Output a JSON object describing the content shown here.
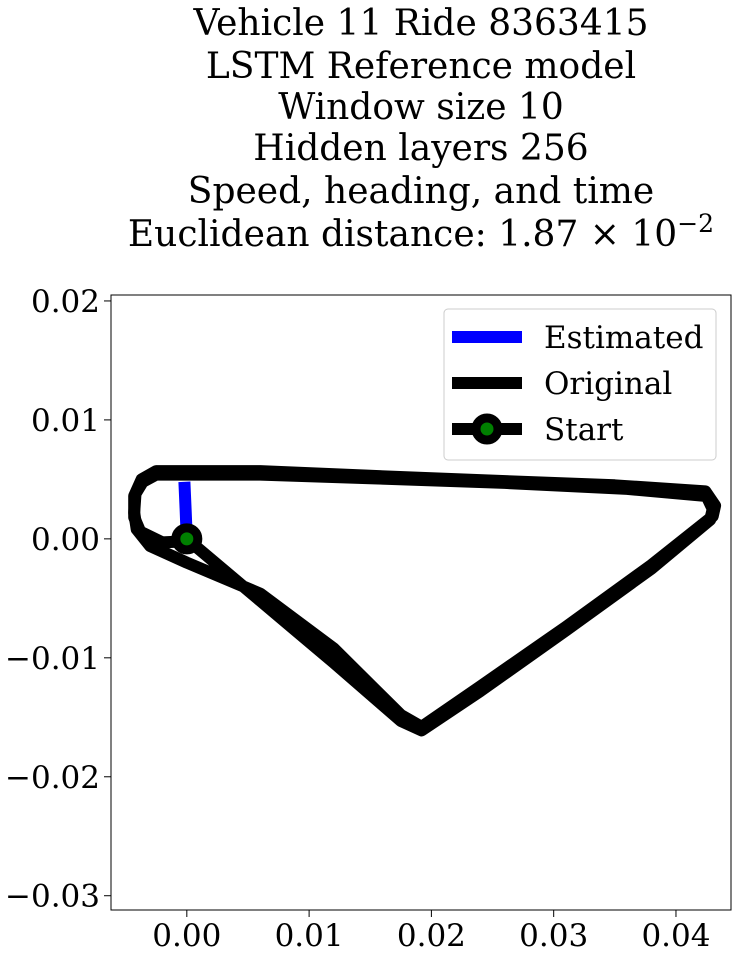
{
  "chart_data": {
    "type": "line",
    "title_lines": [
      "Vehicle 11 Ride 8363415",
      "LSTM Reference model",
      "Window size 10",
      "Hidden layers 256",
      "Speed, heading, and time"
    ],
    "title_metric_prefix": "Euclidean distance: ",
    "title_metric_mantissa": "1.87",
    "title_metric_times": "×",
    "title_metric_base": "10",
    "title_metric_exponent": "−2",
    "xlim": [
      -0.0062,
      0.0445
    ],
    "ylim": [
      -0.0312,
      0.0205
    ],
    "x_ticks": [
      0.0,
      0.01,
      0.02,
      0.03,
      0.04
    ],
    "x_tick_labels": [
      "0.00",
      "0.01",
      "0.02",
      "0.03",
      "0.04"
    ],
    "y_ticks": [
      0.02,
      0.01,
      0.0,
      -0.01,
      -0.02,
      -0.03
    ],
    "y_tick_labels": [
      "0.02",
      "0.01",
      "0.00",
      "−0.01",
      "−0.02",
      "−0.03"
    ],
    "xlabel": "",
    "ylabel": "",
    "grid": false,
    "legend_position": "upper right",
    "colors": {
      "estimated": "#0000ff",
      "original": "#000000",
      "start_marker_edge": "#000000",
      "start_marker_face": "#008000"
    },
    "series": [
      {
        "name": "Estimated",
        "x": [
          0.0,
          -0.0001,
          -0.0002
        ],
        "y": [
          0.0,
          0.0025,
          0.0048
        ]
      },
      {
        "name": "Original",
        "loops": [
          {
            "x": [
              0.0,
              0.006,
              0.012,
              0.0175,
              0.0192,
              0.024,
              0.031,
              0.038,
              0.0428,
              0.043,
              0.0425,
              0.036,
              0.026,
              0.015,
              0.006,
              -0.0025,
              -0.0036,
              -0.0042,
              -0.0043,
              -0.0041,
              -0.003,
              0.0,
              0.006,
              0.012,
              0.0175,
              0.0192
            ],
            "y": [
              0.0,
              -0.0052,
              -0.0104,
              -0.0153,
              -0.0161,
              -0.0128,
              -0.0077,
              -0.0025,
              0.0016,
              0.0025,
              0.0036,
              0.0042,
              0.0047,
              0.0051,
              0.0054,
              0.0054,
              0.0048,
              0.0038,
              0.0022,
              0.0008,
              -0.0006,
              -0.002,
              -0.0046,
              -0.0092,
              -0.0148,
              -0.0158
            ]
          },
          {
            "x": [
              0.0192,
              0.024,
              0.031,
              0.038,
              0.043,
              0.0432,
              0.0424,
              0.035,
              0.025,
              0.015,
              0.006,
              -0.0025,
              -0.0037,
              -0.0043,
              -0.0043,
              -0.0038,
              -0.002,
              0.0
            ],
            "y": [
              -0.0158,
              -0.0124,
              -0.0074,
              -0.0022,
              0.0019,
              0.0028,
              0.004,
              0.0045,
              0.0049,
              0.0053,
              0.0057,
              0.0057,
              0.005,
              0.0036,
              0.0018,
              0.0006,
              -0.0003,
              -0.0002
            ]
          }
        ]
      },
      {
        "name": "Start",
        "x": [
          0.0
        ],
        "y": [
          0.0
        ]
      }
    ]
  }
}
